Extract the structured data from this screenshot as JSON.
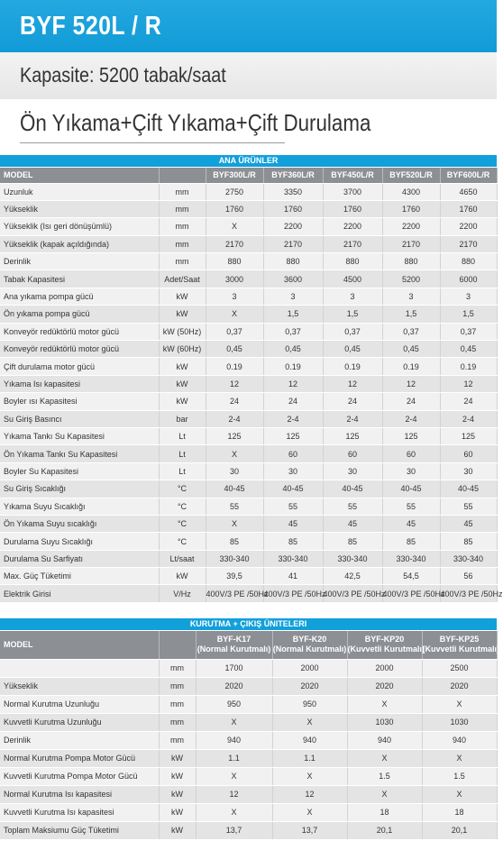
{
  "title": "BYF 520L / R",
  "capacity": "Kapasite: 5200 tabak/saat",
  "subtitle": "Ön Yıkama+Çift Yıkama+Çift Durulama",
  "table1": {
    "section": "ANA ÜRÜNLER",
    "model_label": "MODEL",
    "models": [
      "BYF300L/R",
      "BYF360L/R",
      "BYF450L/R",
      "BYF520L/R",
      "BYF600L/R"
    ],
    "rows": [
      {
        "label": "Uzunluk",
        "unit": "mm",
        "values": [
          "2750",
          "3350",
          "3700",
          "4300",
          "4650"
        ]
      },
      {
        "label": "Yükseklik",
        "unit": "mm",
        "values": [
          "1760",
          "1760",
          "1760",
          "1760",
          "1760"
        ]
      },
      {
        "label": "Yükseklik (Isı geri dönüşümlü)",
        "unit": "mm",
        "values": [
          "X",
          "2200",
          "2200",
          "2200",
          "2200"
        ]
      },
      {
        "label": "Yükseklik (kapak açıldığında)",
        "unit": "mm",
        "values": [
          "2170",
          "2170",
          "2170",
          "2170",
          "2170"
        ]
      },
      {
        "label": "Derinlik",
        "unit": "mm",
        "values": [
          "880",
          "880",
          "880",
          "880",
          "880"
        ]
      },
      {
        "label": "Tabak Kapasitesi",
        "unit": "Adet/Saat",
        "values": [
          "3000",
          "3600",
          "4500",
          "5200",
          "6000"
        ]
      },
      {
        "label": "Ana yıkama pompa gücü",
        "unit": "kW",
        "values": [
          "3",
          "3",
          "3",
          "3",
          "3"
        ]
      },
      {
        "label": "Ön yıkama pompa gücü",
        "unit": "kW",
        "values": [
          "X",
          "1,5",
          "1,5",
          "1,5",
          "1,5"
        ]
      },
      {
        "label": "Konveyör redüktörlü motor gücü",
        "unit": "kW (50Hz)",
        "values": [
          "0,37",
          "0,37",
          "0,37",
          "0,37",
          "0,37"
        ]
      },
      {
        "label": "Konveyör redüktörlü motor gücü",
        "unit": "kW (60Hz)",
        "values": [
          "0,45",
          "0,45",
          "0,45",
          "0,45",
          "0,45"
        ]
      },
      {
        "label": "Çift durulama motor gücü",
        "unit": "kW",
        "values": [
          "0.19",
          "0.19",
          "0.19",
          "0.19",
          "0.19"
        ]
      },
      {
        "label": "Yıkama Isı kapasitesi",
        "unit": "kW",
        "values": [
          "12",
          "12",
          "12",
          "12",
          "12"
        ]
      },
      {
        "label": "Boyler ısı Kapasitesi",
        "unit": "kW",
        "values": [
          "24",
          "24",
          "24",
          "24",
          "24"
        ]
      },
      {
        "label": "Su Giriş Basıncı",
        "unit": "bar",
        "values": [
          "2-4",
          "2-4",
          "2-4",
          "2-4",
          "2-4"
        ]
      },
      {
        "label": "Yıkama Tankı Su Kapasitesi",
        "unit": "Lt",
        "values": [
          "125",
          "125",
          "125",
          "125",
          "125"
        ]
      },
      {
        "label": "Ön Yıkama Tankı Su Kapasitesi",
        "unit": "Lt",
        "values": [
          "X",
          "60",
          "60",
          "60",
          "60"
        ]
      },
      {
        "label": "Boyler Su Kapasitesi",
        "unit": "Lt",
        "values": [
          "30",
          "30",
          "30",
          "30",
          "30"
        ]
      },
      {
        "label": "Su Giriş Sıcaklığı",
        "unit": "°C",
        "values": [
          "40-45",
          "40-45",
          "40-45",
          "40-45",
          "40-45"
        ]
      },
      {
        "label": "Yıkama Suyu Sıcaklığı",
        "unit": "°C",
        "values": [
          "55",
          "55",
          "55",
          "55",
          "55"
        ]
      },
      {
        "label": "Ön Yıkama Suyu sıcaklığı",
        "unit": "°C",
        "values": [
          "X",
          "45",
          "45",
          "45",
          "45"
        ]
      },
      {
        "label": "Durulama Suyu Sıcaklığı",
        "unit": "°C",
        "values": [
          "85",
          "85",
          "85",
          "85",
          "85"
        ]
      },
      {
        "label": "Durulama Su Sarfiyatı",
        "unit": "Lt/saat",
        "values": [
          "330-340",
          "330-340",
          "330-340",
          "330-340",
          "330-340"
        ]
      },
      {
        "label": "Max. Güç Tüketimi",
        "unit": "kW",
        "values": [
          "39,5",
          "41",
          "42,5",
          "54,5",
          "56"
        ]
      },
      {
        "label": "Elektrik Girisi",
        "unit": "V/Hz",
        "values": [
          "400V/3 PE /50Hz",
          "400V/3 PE /50Hz",
          "400V/3 PE /50Hz",
          "400V/3 PE /50Hz",
          "400V/3 PE /50Hz"
        ]
      }
    ]
  },
  "table2": {
    "section": "KURUTMA + ÇIKIŞ ÜNITELERI",
    "model_label": "MODEL",
    "models": [
      {
        "name": "BYF-K17",
        "type": "(Normal Kurutmalı)"
      },
      {
        "name": "BYF-K20",
        "type": "(Normal Kurutmalı)"
      },
      {
        "name": "BYF-KP20",
        "type": "(Kuvvetli Kurutmalı)"
      },
      {
        "name": "BYF-KP25",
        "type": "(Kuvvetli Kurutmalı)"
      }
    ],
    "rows": [
      {
        "label": "",
        "unit": "mm",
        "values": [
          "1700",
          "2000",
          "2000",
          "2500"
        ]
      },
      {
        "label": "Yükseklik",
        "unit": "mm",
        "values": [
          "2020",
          "2020",
          "2020",
          "2020"
        ]
      },
      {
        "label": "Normal Kurutma Uzunluğu",
        "unit": "mm",
        "values": [
          "950",
          "950",
          "X",
          "X"
        ]
      },
      {
        "label": "Kuvvetli Kurutma Uzunluğu",
        "unit": "mm",
        "values": [
          "X",
          "X",
          "1030",
          "1030"
        ]
      },
      {
        "label": "Derinlik",
        "unit": "mm",
        "values": [
          "940",
          "940",
          "940",
          "940"
        ]
      },
      {
        "label": "Normal Kurutma Pompa Motor Gücü",
        "unit": "kW",
        "values": [
          "1.1",
          "1.1",
          "X",
          "X"
        ]
      },
      {
        "label": "Kuvvetli Kurutma Pompa Motor Gücü",
        "unit": "kW",
        "values": [
          "X",
          "X",
          "1.5",
          "1.5"
        ]
      },
      {
        "label": "Normal Kurutma Isı kapasitesi",
        "unit": "kW",
        "values": [
          "12",
          "12",
          "X",
          "X"
        ]
      },
      {
        "label": "Kuvvetli Kurutma Isı kapasitesi",
        "unit": "kW",
        "values": [
          "X",
          "X",
          "18",
          "18"
        ]
      },
      {
        "label": "Toplam Maksiumu Güç Tüketimi",
        "unit": "kW",
        "values": [
          "13,7",
          "13,7",
          "20,1",
          "20,1"
        ]
      }
    ]
  }
}
